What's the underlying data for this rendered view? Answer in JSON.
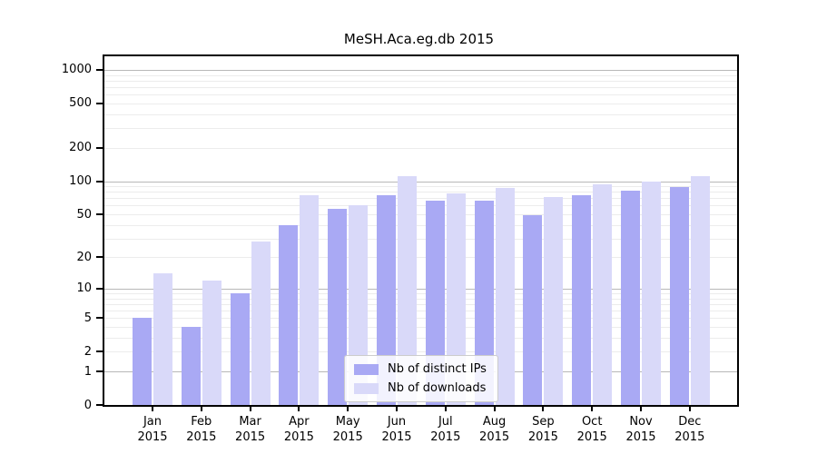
{
  "title": "MeSH.Aca.eg.db 2015",
  "colors": {
    "bar_distinct_ips": "#a9a9f4",
    "bar_downloads": "#d9d9f9",
    "major_grid": "#b8b8b8",
    "minor_grid": "#ececec",
    "axis": "#000000",
    "background": "#ffffff"
  },
  "chart_data": {
    "type": "bar",
    "title": "MeSH.Aca.eg.db 2015",
    "categories": [
      "Jan",
      "Feb",
      "Mar",
      "Apr",
      "May",
      "Jun",
      "Jul",
      "Aug",
      "Sep",
      "Oct",
      "Nov",
      "Dec"
    ],
    "x_tick_year": "2015",
    "series": [
      {
        "name": "Nb of distinct IPs",
        "color": "#a9a9f4",
        "values": [
          5,
          4,
          9,
          40,
          56,
          75,
          66,
          67,
          49,
          75,
          82,
          89
        ]
      },
      {
        "name": "Nb of downloads",
        "color": "#d9d9f9",
        "values": [
          14,
          12,
          28,
          75,
          60,
          112,
          78,
          87,
          72,
          93,
          99,
          110
        ]
      }
    ],
    "y_ticks": [
      0,
      1,
      2,
      5,
      10,
      20,
      50,
      100,
      200,
      500,
      1000
    ],
    "y_scale": "log1p",
    "ylim": [
      0,
      1320
    ],
    "xlabel": "",
    "ylabel": "",
    "grid": true,
    "legend_position": "inside-bottom-center"
  }
}
